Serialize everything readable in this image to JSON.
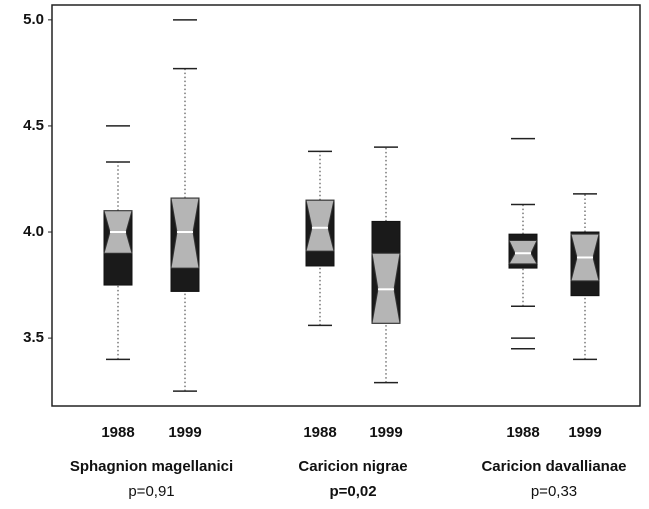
{
  "chart_data": {
    "type": "box",
    "ylim": [
      3.18,
      5.07
    ],
    "yticks": [
      3.5,
      {
        "value": 4,
        "label": "4.0"
      },
      4.5,
      {
        "value": 5,
        "label": "5.0"
      }
    ],
    "groups": [
      {
        "name": "Sphagnion magellanici",
        "p_label": "p=0,91",
        "bold_p": false,
        "boxes": [
          {
            "category": "1988",
            "whisker_low": 3.4,
            "q1": 3.75,
            "notch_low": 3.9,
            "median": 4.0,
            "notch_high": 4.1,
            "q3": 4.1,
            "whisker_high": 4.33,
            "outliers": [
              4.5
            ]
          },
          {
            "category": "1999",
            "whisker_low": 3.25,
            "q1": 3.72,
            "notch_low": 3.83,
            "median": 4.0,
            "notch_high": 4.16,
            "q3": 4.16,
            "whisker_high": 4.77,
            "outliers": [
              5.0
            ]
          }
        ]
      },
      {
        "name": "Caricion nigrae",
        "p_label": "p=0,02",
        "bold_p": true,
        "boxes": [
          {
            "category": "1988",
            "whisker_low": 3.56,
            "q1": 3.84,
            "notch_low": 3.91,
            "median": 4.02,
            "notch_high": 4.15,
            "q3": 4.15,
            "whisker_high": 4.38,
            "outliers": []
          },
          {
            "category": "1999",
            "whisker_low": 3.29,
            "q1": 3.57,
            "notch_low": 3.57,
            "median": 3.73,
            "notch_high": 3.9,
            "q3": 4.05,
            "whisker_high": 4.4,
            "outliers": []
          }
        ]
      },
      {
        "name": "Caricion davallianae",
        "p_label": "p=0,33",
        "bold_p": false,
        "boxes": [
          {
            "category": "1988",
            "whisker_low": 3.65,
            "q1": 3.83,
            "notch_low": 3.85,
            "median": 3.9,
            "notch_high": 3.96,
            "q3": 3.99,
            "whisker_high": 4.13,
            "outliers": [
              4.44,
              3.5,
              3.45
            ]
          },
          {
            "category": "1999",
            "whisker_low": 3.4,
            "q1": 3.7,
            "notch_low": 3.77,
            "median": 3.88,
            "notch_high": 3.99,
            "q3": 4.0,
            "whisker_high": 4.18,
            "outliers": []
          }
        ]
      }
    ]
  }
}
